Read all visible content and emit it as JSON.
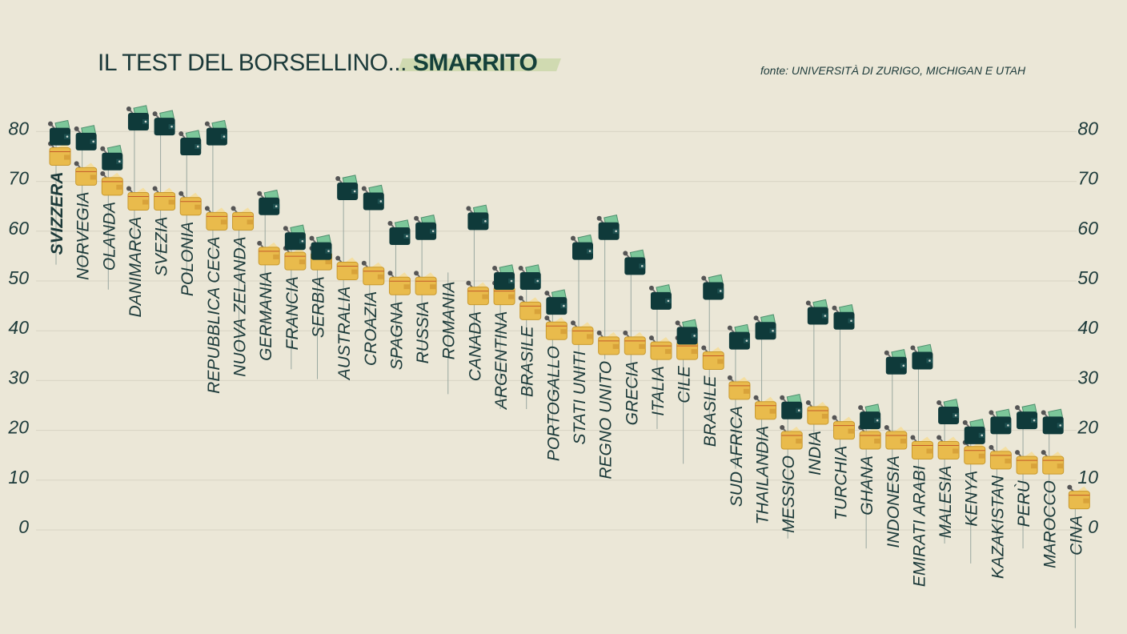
{
  "title": {
    "main": "IL TEST DEL BORSELLINO...",
    "highlight": "SMARRITO"
  },
  "source": "fonte: UNIVERSITÀ DI ZURIGO, MICHIGAN E UTAH",
  "colors": {
    "background": "#ebe7d7",
    "wallet_money": "#0f3a3a",
    "wallet_empty": "#e9bb4c",
    "bill": "#7cc79a",
    "text": "#1c3a3a",
    "grid": "#d7d3c3"
  },
  "icons": {
    "series_money": "wallet-with-cash-icon",
    "series_empty": "yellow-wallet-icon"
  },
  "chart_data": {
    "type": "scatter",
    "ylim": [
      0,
      80
    ],
    "yticks": [
      0,
      10,
      20,
      30,
      40,
      50,
      60,
      70,
      80
    ],
    "grid": true,
    "categories": [
      "SVIZZERA",
      "NORVEGIA",
      "OLANDA",
      "DANIMARCA",
      "SVEZIA",
      "POLONIA",
      "REPUBBLICA CECA",
      "NUOVA ZELANDA",
      "GERMANIA",
      "FRANCIA",
      "SERBIA",
      "AUSTRALIA",
      "CROAZIA",
      "SPAGNA",
      "RUSSIA",
      "ROMANIA",
      "CANADA",
      "ARGENTINA",
      "BRASILE",
      "PORTOGALLO",
      "STATI UNITI",
      "REGNO UNITO",
      "GRECIA",
      "ITALIA",
      "CILE",
      "BRASILE",
      "SUD AFRICA",
      "THAILANDIA",
      "MESSICO",
      "INDIA",
      "TURCHIA",
      "GHANA",
      "INDONESIA",
      "EMIRATI ARABI",
      "MALESIA",
      "KENYA",
      "KAZAKISTAN",
      "PERÙ",
      "MAROCCO",
      "CINA"
    ],
    "series": [
      {
        "key": "money",
        "values": [
          79,
          78,
          74,
          82,
          81,
          77,
          79,
          null,
          65,
          58,
          56,
          68,
          66,
          59,
          60,
          null,
          62,
          50,
          50,
          45,
          56,
          60,
          53,
          46,
          39,
          48,
          38,
          40,
          24,
          43,
          42,
          22,
          33,
          34,
          23,
          19,
          21,
          22,
          21,
          null
        ]
      },
      {
        "key": "empty",
        "values": [
          75,
          71,
          69,
          66,
          66,
          65,
          62,
          62,
          55,
          54,
          54,
          52,
          51,
          49,
          49,
          null,
          47,
          47,
          44,
          40,
          39,
          37,
          37,
          36,
          36,
          34,
          28,
          24,
          18,
          23,
          20,
          18,
          18,
          16,
          16,
          15,
          14,
          13,
          13,
          6
        ]
      }
    ]
  }
}
